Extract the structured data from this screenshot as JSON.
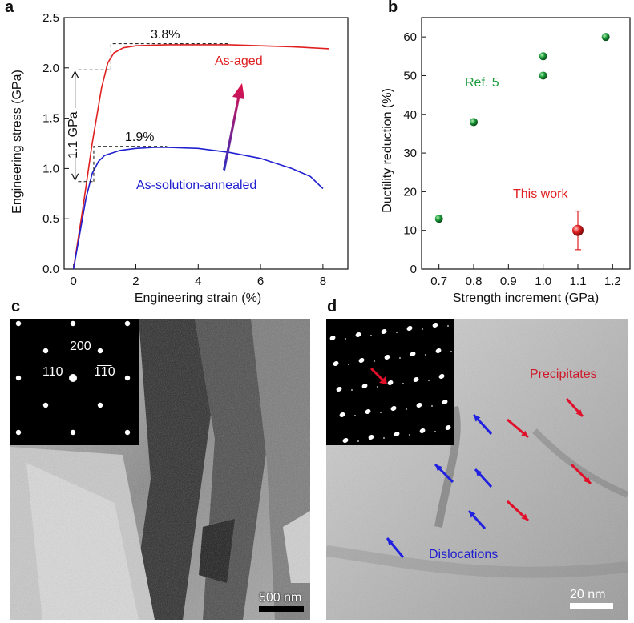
{
  "panels": {
    "a": "a",
    "b": "b",
    "c": "c",
    "d": "d"
  },
  "chart_data": [
    {
      "type": "line",
      "panel": "a",
      "xlabel": "Engineering strain (%)",
      "ylabel": "Engineering stress (GPa)",
      "xlim": [
        -0.3,
        8.8
      ],
      "ylim": [
        0,
        2.5
      ],
      "xticks": [
        0,
        2,
        4,
        6,
        8
      ],
      "yticks": [
        0.0,
        0.5,
        1.0,
        1.5,
        2.0,
        2.5
      ],
      "series": [
        {
          "name": "As-aged",
          "color": "#e02020",
          "x": [
            0,
            0.3,
            0.6,
            0.9,
            1.1,
            1.3,
            1.6,
            2.0,
            3.0,
            4.0,
            5.0,
            6.0,
            7.0,
            8.2
          ],
          "y": [
            0,
            0.6,
            1.25,
            1.8,
            2.05,
            2.15,
            2.2,
            2.22,
            2.23,
            2.23,
            2.23,
            2.22,
            2.21,
            2.19
          ]
        },
        {
          "name": "As-solution-annealed",
          "color": "#2020d0",
          "x": [
            0,
            0.2,
            0.4,
            0.6,
            0.8,
            1.0,
            1.5,
            2.0,
            2.6,
            3.0,
            4.0,
            5.0,
            6.0,
            7.0,
            7.6,
            8.0
          ],
          "y": [
            0,
            0.35,
            0.7,
            0.95,
            1.07,
            1.13,
            1.18,
            1.2,
            1.21,
            1.21,
            1.2,
            1.16,
            1.1,
            1.0,
            0.92,
            0.8
          ]
        }
      ],
      "annotations": {
        "aged_elong": "3.8%",
        "annealed_elong": "1.9%",
        "strength_gain": "1.1 GPa"
      }
    },
    {
      "type": "scatter",
      "panel": "b",
      "xlabel": "Strength increment (GPa)",
      "ylabel": "Ductility reduction (%)",
      "xlim": [
        0.65,
        1.25
      ],
      "ylim": [
        0,
        65
      ],
      "xticks": [
        0.7,
        0.8,
        0.9,
        1.0,
        1.1,
        1.2
      ],
      "yticks": [
        0,
        10,
        20,
        30,
        40,
        50,
        60
      ],
      "series": [
        {
          "name": "Ref. 5",
          "color": "#1a9a3a",
          "x": [
            0.7,
            0.8,
            1.0,
            1.0,
            1.18
          ],
          "y": [
            13,
            38,
            50,
            55,
            60
          ]
        },
        {
          "name": "This work",
          "color": "#e02020",
          "x": [
            1.1
          ],
          "y": [
            10
          ],
          "yerr": [
            5
          ]
        }
      ]
    }
  ],
  "panel_c": {
    "saed_labels": [
      "200",
      "110",
      "1̅1̅0"
    ],
    "scale_bar": "500 nm"
  },
  "panel_d": {
    "label_precipitates": "Precipitates",
    "label_dislocations": "Dislocations",
    "scale_bar": "20 nm"
  }
}
